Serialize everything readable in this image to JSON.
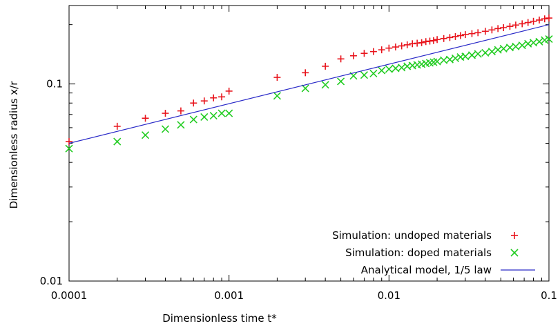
{
  "chart_data": {
    "type": "scatter",
    "xlabel": "Dimensionless time t*",
    "ylabel": "Dimensionless radius x/r",
    "xscale": "log",
    "yscale": "log",
    "xlim": [
      0.0001,
      0.1
    ],
    "ylim": [
      0.01,
      0.25
    ],
    "x_ticks": [
      {
        "value": 0.0001,
        "label": "0.0001"
      },
      {
        "value": 0.001,
        "label": "0.001"
      },
      {
        "value": 0.01,
        "label": "0.01"
      },
      {
        "value": 0.1,
        "label": "0.1"
      }
    ],
    "y_ticks": [
      {
        "value": 0.01,
        "label": "0.01"
      },
      {
        "value": 0.1,
        "label": "0.1"
      }
    ],
    "grid": false,
    "legend_position": "bottom-right",
    "series": [
      {
        "name": "Simulation: undoped materials",
        "marker": "plus",
        "color": "#e8141c",
        "x": [
          0.0001,
          0.0002,
          0.0003,
          0.0004,
          0.0005,
          0.0006,
          0.0007,
          0.0008,
          0.0009,
          0.001,
          0.002,
          0.003,
          0.004,
          0.005,
          0.006,
          0.007,
          0.008,
          0.009,
          0.01,
          0.011,
          0.012,
          0.013,
          0.014,
          0.015,
          0.016,
          0.017,
          0.018,
          0.019,
          0.02,
          0.022,
          0.024,
          0.026,
          0.028,
          0.03,
          0.033,
          0.036,
          0.04,
          0.044,
          0.048,
          0.052,
          0.057,
          0.062,
          0.068,
          0.074,
          0.08,
          0.087,
          0.094,
          0.1
        ],
        "y": [
          0.051,
          0.061,
          0.067,
          0.071,
          0.073,
          0.08,
          0.082,
          0.085,
          0.086,
          0.092,
          0.108,
          0.114,
          0.123,
          0.134,
          0.139,
          0.143,
          0.146,
          0.149,
          0.152,
          0.154,
          0.156,
          0.158,
          0.16,
          0.161,
          0.162,
          0.164,
          0.165,
          0.166,
          0.168,
          0.17,
          0.172,
          0.174,
          0.176,
          0.178,
          0.18,
          0.182,
          0.185,
          0.188,
          0.191,
          0.193,
          0.196,
          0.199,
          0.202,
          0.205,
          0.208,
          0.211,
          0.214,
          0.216
        ]
      },
      {
        "name": "Simulation: doped materials",
        "marker": "cross",
        "color": "#22cc22",
        "x": [
          0.0001,
          0.0002,
          0.0003,
          0.0004,
          0.0005,
          0.0006,
          0.0007,
          0.0008,
          0.0009,
          0.001,
          0.002,
          0.003,
          0.004,
          0.005,
          0.006,
          0.007,
          0.008,
          0.009,
          0.01,
          0.011,
          0.012,
          0.013,
          0.014,
          0.015,
          0.016,
          0.017,
          0.018,
          0.019,
          0.02,
          0.022,
          0.024,
          0.026,
          0.028,
          0.03,
          0.033,
          0.036,
          0.04,
          0.044,
          0.048,
          0.052,
          0.057,
          0.062,
          0.068,
          0.074,
          0.08,
          0.087,
          0.094,
          0.1
        ],
        "y": [
          0.047,
          0.051,
          0.055,
          0.059,
          0.062,
          0.066,
          0.068,
          0.069,
          0.071,
          0.071,
          0.087,
          0.095,
          0.099,
          0.103,
          0.11,
          0.111,
          0.113,
          0.117,
          0.119,
          0.12,
          0.121,
          0.123,
          0.124,
          0.125,
          0.126,
          0.127,
          0.128,
          0.129,
          0.13,
          0.132,
          0.133,
          0.135,
          0.137,
          0.138,
          0.14,
          0.142,
          0.144,
          0.146,
          0.149,
          0.151,
          0.153,
          0.155,
          0.157,
          0.16,
          0.162,
          0.164,
          0.167,
          0.169
        ]
      },
      {
        "name": "Analytical model, 1/5 law",
        "marker": "line",
        "color": "#2a2ac8",
        "x": [
          0.0001,
          0.1
        ],
        "y": [
          0.05,
          0.2
        ]
      }
    ]
  }
}
